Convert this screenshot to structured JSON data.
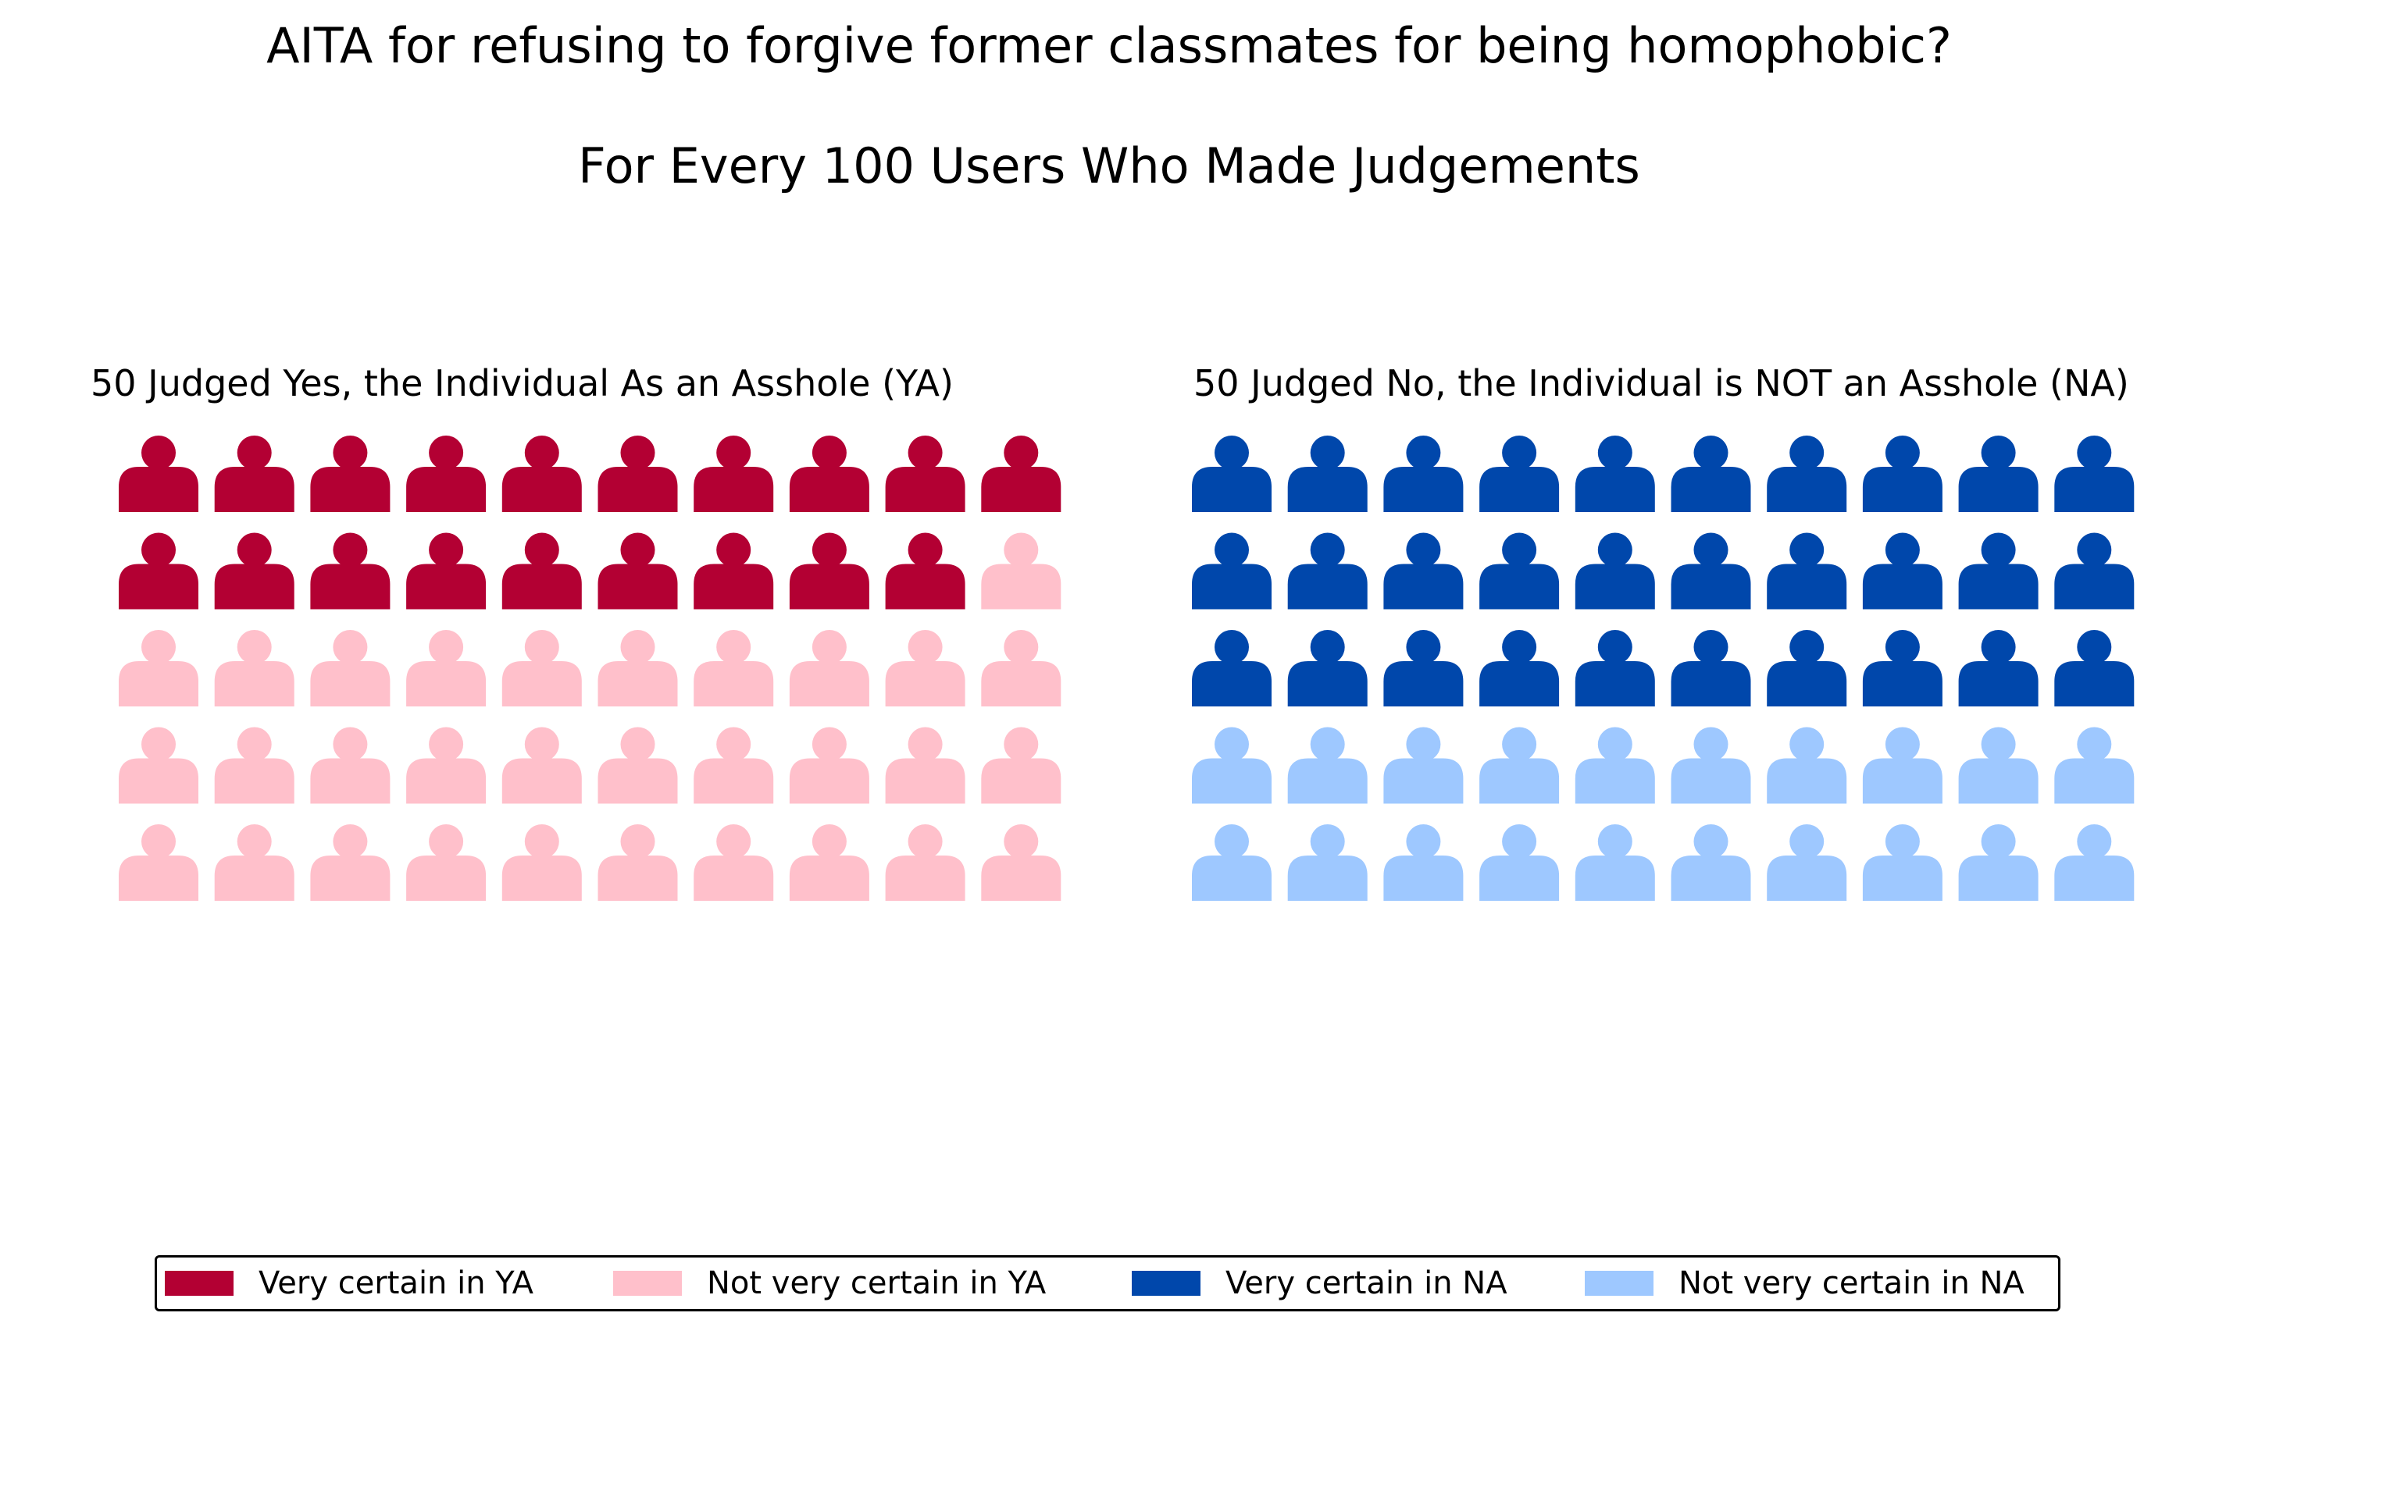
{
  "title": "AITA for refusing to forgive former classmates for being homophobic?",
  "subtitle": "For Every 100 Users Who Made Judgements",
  "colors": {
    "very_certain_ya": "#b30033",
    "not_very_certain_ya": "#ffc0cb",
    "very_certain_na": "#0047ab",
    "not_very_certain_na": "#9ec8ff"
  },
  "chart_data": {
    "type": "waffle",
    "icon": "person-icon",
    "grid": {
      "rows": 5,
      "columns": 10
    },
    "panels": [
      {
        "title": "50 Judged Yes, the Individual As an Asshole (YA)",
        "total": 50,
        "counts": [
          {
            "label": "Very certain in YA",
            "value": 19,
            "color_key": "very_certain_ya"
          },
          {
            "label": "Not very certain in YA",
            "value": 31,
            "color_key": "not_very_certain_ya"
          }
        ]
      },
      {
        "title": "50 Judged No, the Individual is NOT an Asshole (NA)",
        "total": 50,
        "counts": [
          {
            "label": "Very certain in NA",
            "value": 30,
            "color_key": "very_certain_na"
          },
          {
            "label": "Not very certain in NA",
            "value": 20,
            "color_key": "not_very_certain_na"
          }
        ]
      }
    ],
    "legend": {
      "position": "bottom",
      "entries": [
        {
          "label": "Very certain in YA",
          "color_key": "very_certain_ya"
        },
        {
          "label": "Not very certain in YA",
          "color_key": "not_very_certain_ya"
        },
        {
          "label": "Very certain in NA",
          "color_key": "very_certain_na"
        },
        {
          "label": "Not very certain in NA",
          "color_key": "not_very_certain_na"
        }
      ]
    }
  }
}
